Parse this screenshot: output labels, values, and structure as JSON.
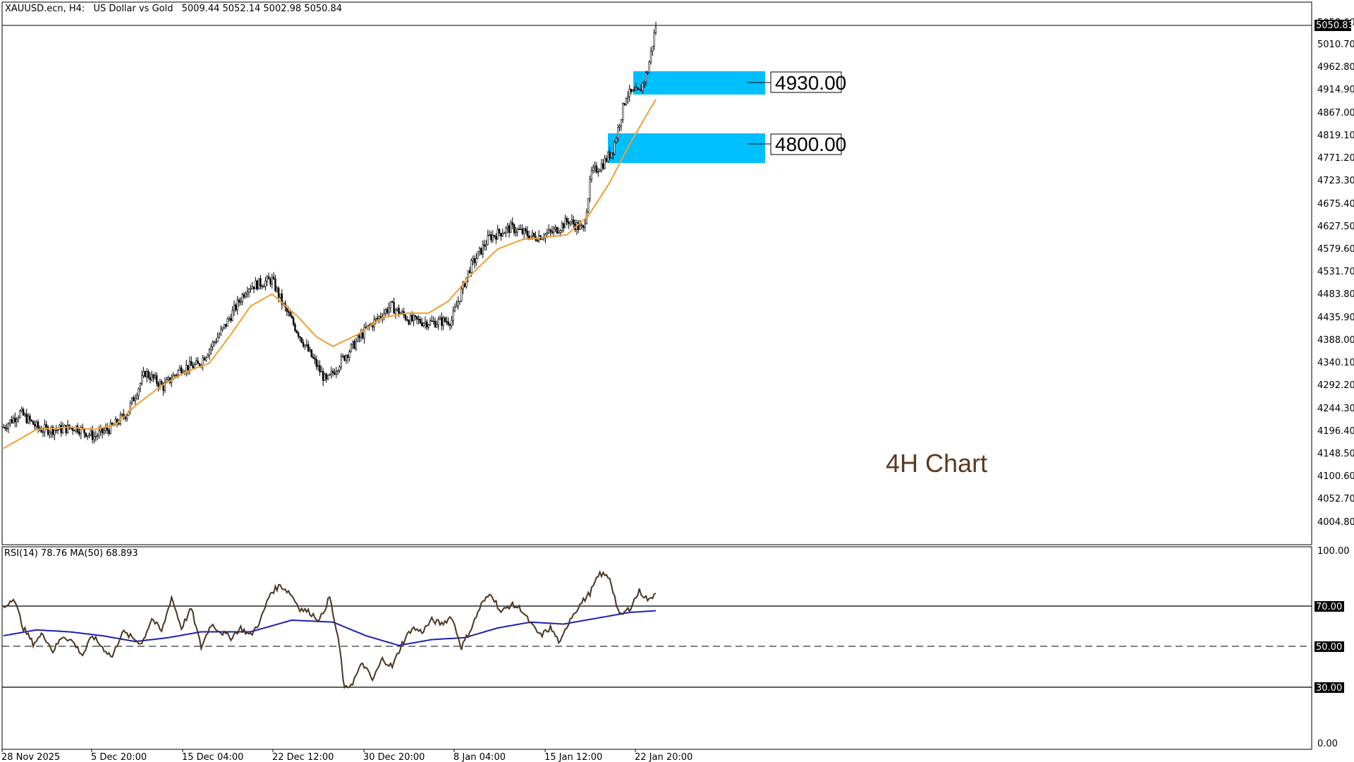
{
  "header": {
    "symbol": "XAUUSD.ecn, H4:",
    "description": "US Dollar vs Gold",
    "ohlc": "5009.44 5052.14 5002.98 5050.84"
  },
  "annotation": {
    "text": "4H Chart"
  },
  "zones": [
    {
      "label": "4930.00",
      "low": 4908,
      "high": 4958
    },
    {
      "label": "4800.00",
      "low": 4753,
      "high": 4820
    }
  ],
  "price_axis": {
    "current_price": "5050.83",
    "labels": [
      "5058.60",
      "5010.70",
      "4962.80",
      "4914.90",
      "4867.00",
      "4819.10",
      "4771.20",
      "4723.30",
      "4675.40",
      "4627.50",
      "4579.60",
      "4531.70",
      "4483.80",
      "4435.90",
      "4388.00",
      "4340.10",
      "4292.20",
      "4244.30",
      "4196.40",
      "4148.50",
      "4100.60",
      "4052.70",
      "4004.80"
    ]
  },
  "rsi": {
    "label": "RSI(14) 78.76 MA(50) 68.893",
    "levels": [
      "100.00",
      "70.00",
      "50.00",
      "30.00",
      "0.00"
    ]
  },
  "time_axis": [
    "28 Nov 2025",
    "5 Dec 20:00",
    "15 Dec 04:00",
    "22 Dec 12:00",
    "30 Dec 20:00",
    "8 Jan 04:00",
    "15 Jan 12:00",
    "22 Jan 20:00"
  ],
  "colors": {
    "candle": "#000000",
    "ma_line": "#f0a030",
    "zone_fill": "#00bfff",
    "rsi_line": "#4a3520",
    "rsi_ma": "#1e1eb4",
    "annotation": "#5b3a1e"
  },
  "chart_data": {
    "type": "candlestick",
    "symbol": "XAUUSD.ecn",
    "timeframe": "H4",
    "ylim": [
      3980,
      5070
    ],
    "close_path_anchors": [
      [
        0,
        4205
      ],
      [
        10,
        4235
      ],
      [
        22,
        4200
      ],
      [
        34,
        4200
      ],
      [
        44,
        4205
      ],
      [
        55,
        4185
      ],
      [
        66,
        4205
      ],
      [
        75,
        4235
      ],
      [
        86,
        4320
      ],
      [
        97,
        4290
      ],
      [
        108,
        4330
      ],
      [
        118,
        4335
      ],
      [
        133,
        4410
      ],
      [
        148,
        4500
      ],
      [
        163,
        4515
      ],
      [
        170,
        4460
      ],
      [
        185,
        4365
      ],
      [
        196,
        4300
      ],
      [
        205,
        4345
      ],
      [
        220,
        4410
      ],
      [
        235,
        4460
      ],
      [
        247,
        4430
      ],
      [
        260,
        4425
      ],
      [
        272,
        4430
      ],
      [
        283,
        4540
      ],
      [
        295,
        4605
      ],
      [
        308,
        4625
      ],
      [
        322,
        4605
      ],
      [
        333,
        4615
      ],
      [
        343,
        4640
      ],
      [
        352,
        4620
      ],
      [
        357,
        4740
      ],
      [
        364,
        4760
      ],
      [
        370,
        4790
      ],
      [
        378,
        4905
      ],
      [
        386,
        4910
      ],
      [
        391,
        4955
      ],
      [
        396,
        5050
      ]
    ],
    "close_ma_anchors": [
      [
        0,
        4160
      ],
      [
        20,
        4200
      ],
      [
        40,
        4205
      ],
      [
        55,
        4200
      ],
      [
        68,
        4210
      ],
      [
        80,
        4250
      ],
      [
        95,
        4290
      ],
      [
        110,
        4320
      ],
      [
        125,
        4340
      ],
      [
        138,
        4400
      ],
      [
        150,
        4460
      ],
      [
        163,
        4485
      ],
      [
        178,
        4440
      ],
      [
        190,
        4395
      ],
      [
        200,
        4375
      ],
      [
        215,
        4400
      ],
      [
        230,
        4435
      ],
      [
        245,
        4445
      ],
      [
        258,
        4445
      ],
      [
        270,
        4470
      ],
      [
        285,
        4530
      ],
      [
        300,
        4580
      ],
      [
        315,
        4600
      ],
      [
        330,
        4605
      ],
      [
        342,
        4610
      ],
      [
        355,
        4650
      ],
      [
        368,
        4720
      ],
      [
        380,
        4800
      ],
      [
        390,
        4860
      ],
      [
        396,
        4895
      ]
    ],
    "rsi_anchors": [
      [
        0,
        70
      ],
      [
        6,
        76
      ],
      [
        12,
        60
      ],
      [
        18,
        52
      ],
      [
        24,
        57
      ],
      [
        30,
        48
      ],
      [
        36,
        56
      ],
      [
        42,
        53
      ],
      [
        48,
        46
      ],
      [
        54,
        56
      ],
      [
        60,
        50
      ],
      [
        66,
        45
      ],
      [
        72,
        58
      ],
      [
        78,
        55
      ],
      [
        84,
        52
      ],
      [
        90,
        65
      ],
      [
        96,
        58
      ],
      [
        102,
        76
      ],
      [
        108,
        60
      ],
      [
        114,
        70
      ],
      [
        120,
        50
      ],
      [
        126,
        62
      ],
      [
        132,
        58
      ],
      [
        138,
        55
      ],
      [
        144,
        60
      ],
      [
        150,
        56
      ],
      [
        156,
        64
      ],
      [
        162,
        78
      ],
      [
        168,
        82
      ],
      [
        174,
        78
      ],
      [
        180,
        70
      ],
      [
        186,
        68
      ],
      [
        192,
        64
      ],
      [
        198,
        76
      ],
      [
        204,
        50
      ],
      [
        207,
        28
      ],
      [
        212,
        32
      ],
      [
        218,
        42
      ],
      [
        224,
        33
      ],
      [
        230,
        44
      ],
      [
        236,
        40
      ],
      [
        242,
        52
      ],
      [
        248,
        60
      ],
      [
        254,
        58
      ],
      [
        260,
        64
      ],
      [
        266,
        62
      ],
      [
        272,
        66
      ],
      [
        278,
        50
      ],
      [
        284,
        60
      ],
      [
        290,
        72
      ],
      [
        296,
        78
      ],
      [
        302,
        68
      ],
      [
        308,
        72
      ],
      [
        314,
        70
      ],
      [
        320,
        62
      ],
      [
        326,
        56
      ],
      [
        332,
        60
      ],
      [
        338,
        52
      ],
      [
        344,
        65
      ],
      [
        350,
        72
      ],
      [
        356,
        78
      ],
      [
        362,
        88
      ],
      [
        368,
        86
      ],
      [
        374,
        66
      ],
      [
        380,
        70
      ],
      [
        386,
        79
      ],
      [
        392,
        74
      ],
      [
        396,
        78.76
      ]
    ],
    "rsi_ma_anchors": [
      [
        0,
        56
      ],
      [
        20,
        59
      ],
      [
        40,
        58
      ],
      [
        60,
        56
      ],
      [
        80,
        53
      ],
      [
        100,
        55
      ],
      [
        120,
        58
      ],
      [
        150,
        58
      ],
      [
        175,
        64
      ],
      [
        200,
        63
      ],
      [
        220,
        56
      ],
      [
        240,
        51
      ],
      [
        260,
        54
      ],
      [
        280,
        55
      ],
      [
        300,
        60
      ],
      [
        320,
        63
      ],
      [
        340,
        62
      ],
      [
        360,
        65
      ],
      [
        380,
        68
      ],
      [
        396,
        68.893
      ]
    ]
  }
}
